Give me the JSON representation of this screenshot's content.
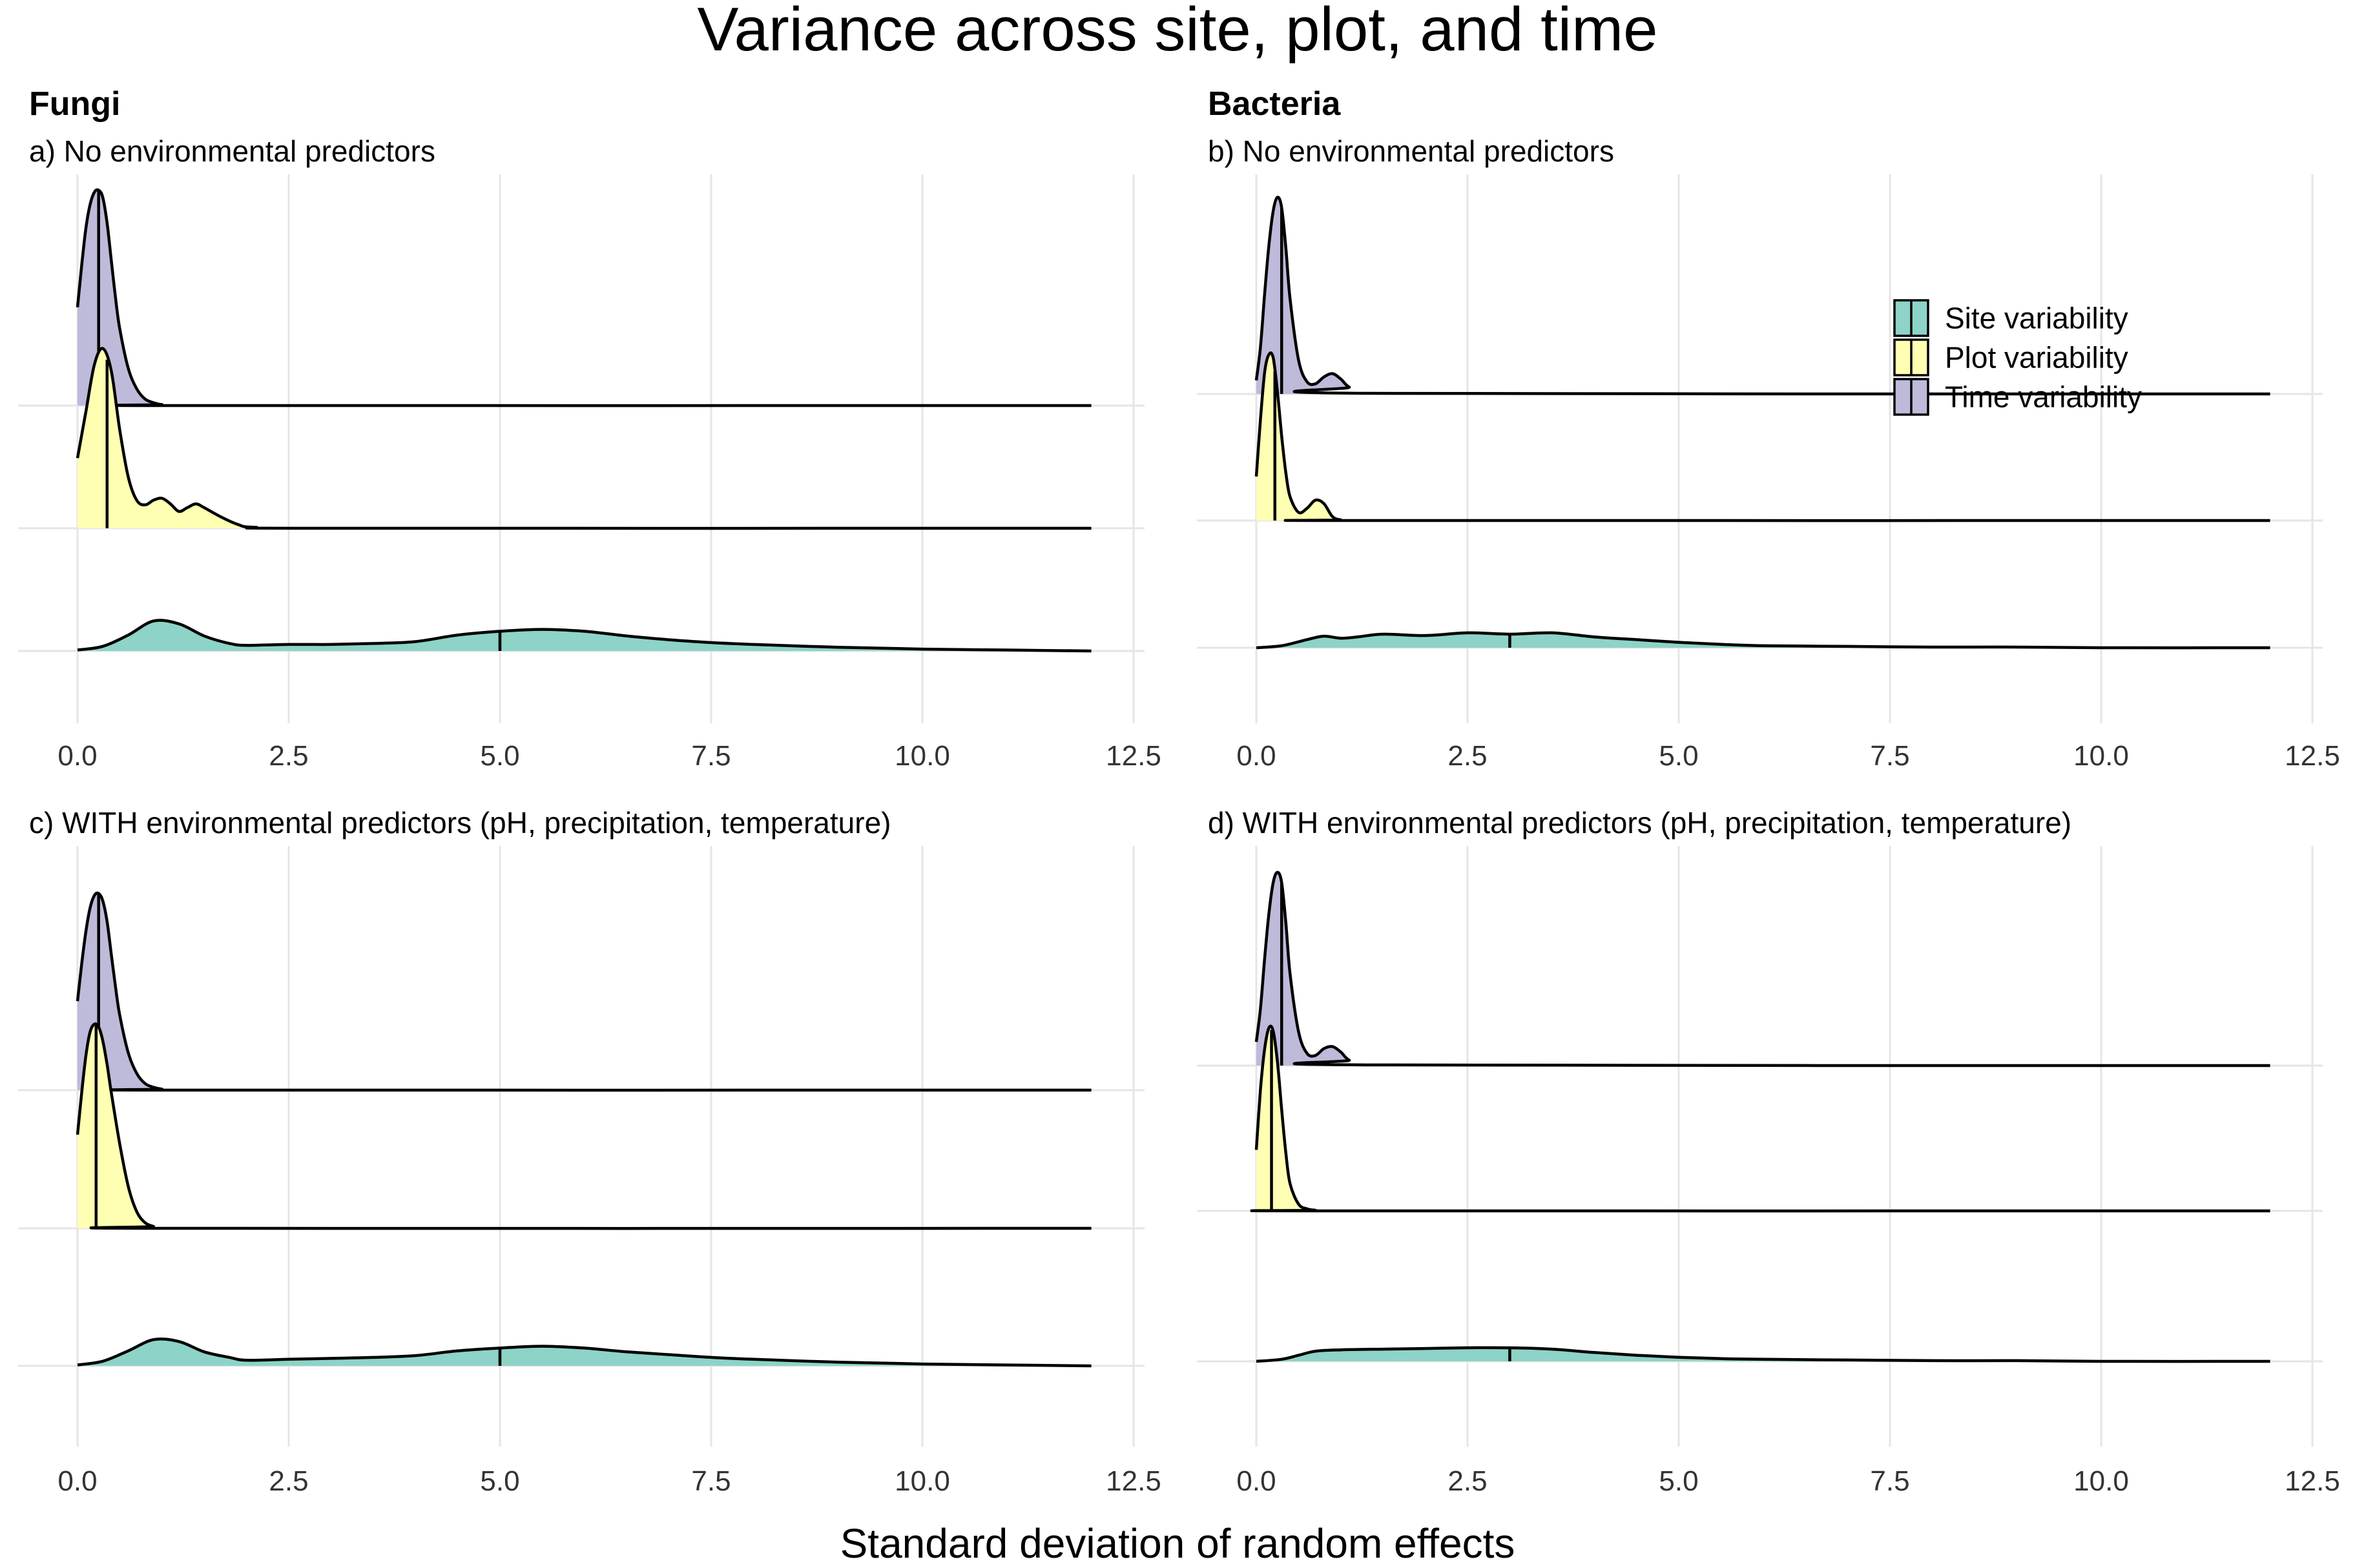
{
  "title": "Variance across site, plot, and time",
  "xlabel": "Standard deviation of random effects",
  "groups": [
    {
      "name": "Fungi"
    },
    {
      "name": "Bacteria"
    }
  ],
  "legend": {
    "placement": "inside-top-right of panel b",
    "items": [
      {
        "label": "Site variability",
        "color": "#8DD3C7"
      },
      {
        "label": "Plot variability",
        "color": "#FFFFB3"
      },
      {
        "label": "Time variability",
        "color": "#BEBADA"
      }
    ]
  },
  "chart_data": [
    {
      "type": "area",
      "subtype": "ridgeline-density",
      "group": "Fungi",
      "subtitle": "a) No environmental predictors",
      "x_ticks": [
        "0.0",
        "2.5",
        "5.0",
        "7.5",
        "10.0",
        "12.5"
      ],
      "xlim": [
        0,
        12.5
      ],
      "grid": true,
      "series": [
        {
          "name": "Site variability",
          "median": 5.0,
          "x": [
            0,
            0.3,
            0.6,
            0.9,
            1.2,
            1.5,
            1.8,
            2.0,
            2.5,
            3.0,
            3.5,
            4.0,
            4.5,
            5.0,
            5.5,
            6.0,
            6.5,
            7.0,
            7.5,
            8.0,
            9.0,
            10.0,
            11.0,
            12.0
          ],
          "y": [
            0.01,
            0.05,
            0.17,
            0.32,
            0.29,
            0.16,
            0.08,
            0.06,
            0.07,
            0.07,
            0.08,
            0.1,
            0.17,
            0.21,
            0.23,
            0.21,
            0.16,
            0.12,
            0.09,
            0.07,
            0.04,
            0.02,
            0.01,
            0.0
          ]
        },
        {
          "name": "Plot variability",
          "median": 0.35,
          "x": [
            0,
            0.1,
            0.2,
            0.3,
            0.4,
            0.5,
            0.6,
            0.7,
            0.8,
            0.9,
            1.0,
            1.1,
            1.2,
            1.3,
            1.4,
            1.5,
            1.7,
            1.9,
            2.1,
            3.0,
            12.0
          ],
          "y": [
            0.75,
            1.25,
            1.75,
            1.92,
            1.68,
            1.05,
            0.55,
            0.3,
            0.25,
            0.3,
            0.32,
            0.26,
            0.18,
            0.22,
            0.26,
            0.22,
            0.12,
            0.04,
            0.01,
            0.0,
            0.0
          ]
        },
        {
          "name": "Time variability",
          "median": 0.25,
          "x": [
            0,
            0.05,
            0.1,
            0.15,
            0.2,
            0.25,
            0.3,
            0.35,
            0.4,
            0.45,
            0.5,
            0.6,
            0.7,
            0.8,
            0.9,
            1.0,
            1.2,
            12.0
          ],
          "y": [
            1.05,
            1.5,
            1.9,
            2.15,
            2.28,
            2.3,
            2.22,
            1.95,
            1.55,
            1.15,
            0.82,
            0.4,
            0.18,
            0.07,
            0.03,
            0.01,
            0.0,
            0.0
          ]
        }
      ]
    },
    {
      "type": "area",
      "subtype": "ridgeline-density",
      "group": "Bacteria",
      "subtitle": "b) No environmental predictors",
      "x_ticks": [
        "0.0",
        "2.5",
        "5.0",
        "7.5",
        "10.0",
        "12.5"
      ],
      "xlim": [
        0,
        12.5
      ],
      "grid": true,
      "series": [
        {
          "name": "Site variability",
          "median": 3.0,
          "x": [
            0,
            0.3,
            0.6,
            0.8,
            1.0,
            1.2,
            1.5,
            2.0,
            2.5,
            3.0,
            3.5,
            4.0,
            4.5,
            5.0,
            5.5,
            6.0,
            7.0,
            8.0,
            9.0,
            10.0,
            12.0
          ],
          "y": [
            0.0,
            0.03,
            0.12,
            0.17,
            0.14,
            0.16,
            0.2,
            0.18,
            0.22,
            0.2,
            0.22,
            0.16,
            0.12,
            0.08,
            0.05,
            0.03,
            0.02,
            0.01,
            0.01,
            0.0,
            0.0
          ]
        },
        {
          "name": "Plot variability",
          "median": 0.22,
          "x": [
            0,
            0.05,
            0.1,
            0.15,
            0.2,
            0.25,
            0.3,
            0.35,
            0.4,
            0.5,
            0.6,
            0.7,
            0.8,
            0.9,
            1.0,
            1.2,
            12.0
          ],
          "y": [
            0.65,
            1.5,
            2.2,
            2.45,
            2.4,
            1.9,
            1.25,
            0.7,
            0.35,
            0.12,
            0.18,
            0.3,
            0.25,
            0.06,
            0.01,
            0.0,
            0.0
          ]
        },
        {
          "name": "Time variability",
          "median": 0.3,
          "x": [
            0,
            0.05,
            0.1,
            0.15,
            0.2,
            0.25,
            0.3,
            0.35,
            0.4,
            0.5,
            0.6,
            0.7,
            0.8,
            0.9,
            1.0,
            1.1,
            1.3,
            12.0
          ],
          "y": [
            0.2,
            0.7,
            1.5,
            2.2,
            2.7,
            2.9,
            2.75,
            2.15,
            1.4,
            0.5,
            0.18,
            0.15,
            0.25,
            0.3,
            0.22,
            0.1,
            0.01,
            0.0
          ]
        }
      ]
    },
    {
      "type": "area",
      "subtype": "ridgeline-density",
      "group": "Fungi",
      "subtitle": "c) WITH environmental predictors (pH, precipitation, temperature)",
      "x_ticks": [
        "0.0",
        "2.5",
        "5.0",
        "7.5",
        "10.0",
        "12.5"
      ],
      "xlim": [
        0,
        12.5
      ],
      "grid": true,
      "series": [
        {
          "name": "Site variability",
          "median": 5.0,
          "x": [
            0,
            0.3,
            0.6,
            0.9,
            1.2,
            1.5,
            1.8,
            2.0,
            2.5,
            3.0,
            3.5,
            4.0,
            4.5,
            5.0,
            5.5,
            6.0,
            6.5,
            7.0,
            7.5,
            8.0,
            9.0,
            10.0,
            11.0,
            12.0
          ],
          "y": [
            0.01,
            0.05,
            0.16,
            0.28,
            0.26,
            0.15,
            0.09,
            0.06,
            0.07,
            0.08,
            0.09,
            0.11,
            0.16,
            0.19,
            0.21,
            0.19,
            0.15,
            0.12,
            0.09,
            0.07,
            0.04,
            0.02,
            0.01,
            0.0
          ]
        },
        {
          "name": "Plot variability",
          "median": 0.22,
          "x": [
            0,
            0.05,
            0.1,
            0.15,
            0.2,
            0.25,
            0.3,
            0.35,
            0.4,
            0.5,
            0.6,
            0.7,
            0.8,
            0.9,
            1.0,
            12.0
          ],
          "y": [
            1.0,
            1.45,
            1.85,
            2.1,
            2.18,
            2.15,
            2.0,
            1.75,
            1.45,
            0.9,
            0.45,
            0.18,
            0.06,
            0.02,
            0.0,
            0.0
          ]
        },
        {
          "name": "Time variability",
          "median": 0.25,
          "x": [
            0,
            0.05,
            0.1,
            0.15,
            0.2,
            0.25,
            0.3,
            0.35,
            0.4,
            0.45,
            0.5,
            0.6,
            0.7,
            0.8,
            0.9,
            1.0,
            1.2,
            12.0
          ],
          "y": [
            0.95,
            1.35,
            1.7,
            1.95,
            2.08,
            2.1,
            2.02,
            1.8,
            1.45,
            1.1,
            0.8,
            0.4,
            0.18,
            0.07,
            0.03,
            0.01,
            0.0,
            0.0
          ]
        }
      ]
    },
    {
      "type": "area",
      "subtype": "ridgeline-density",
      "group": "Bacteria",
      "subtitle": "d) WITH environmental predictors (pH, precipitation, temperature)",
      "x_ticks": [
        "0.0",
        "2.5",
        "5.0",
        "7.5",
        "10.0",
        "12.5"
      ],
      "xlim": [
        0,
        12.5
      ],
      "grid": true,
      "series": [
        {
          "name": "Site variability",
          "median": 3.0,
          "x": [
            0,
            0.3,
            0.5,
            0.7,
            1.0,
            1.5,
            2.0,
            2.5,
            3.0,
            3.5,
            4.0,
            4.5,
            5.0,
            5.5,
            6.0,
            7.0,
            8.0,
            9.0,
            10.0,
            12.0
          ],
          "y": [
            0.0,
            0.03,
            0.09,
            0.15,
            0.17,
            0.18,
            0.19,
            0.2,
            0.2,
            0.18,
            0.13,
            0.09,
            0.06,
            0.04,
            0.03,
            0.02,
            0.01,
            0.01,
            0.0,
            0.0
          ]
        },
        {
          "name": "Plot variability",
          "median": 0.18,
          "x": [
            0,
            0.05,
            0.1,
            0.15,
            0.2,
            0.25,
            0.3,
            0.35,
            0.4,
            0.5,
            0.6,
            0.7,
            0.8,
            12.0
          ],
          "y": [
            0.9,
            1.8,
            2.4,
            2.7,
            2.65,
            2.2,
            1.5,
            0.85,
            0.4,
            0.1,
            0.03,
            0.01,
            0.0,
            0.0
          ]
        },
        {
          "name": "Time variability",
          "median": 0.3,
          "x": [
            0,
            0.05,
            0.1,
            0.15,
            0.2,
            0.25,
            0.3,
            0.35,
            0.4,
            0.5,
            0.6,
            0.7,
            0.8,
            0.9,
            1.0,
            1.1,
            1.3,
            12.0
          ],
          "y": [
            0.35,
            0.85,
            1.6,
            2.25,
            2.7,
            2.85,
            2.7,
            2.1,
            1.35,
            0.5,
            0.18,
            0.15,
            0.25,
            0.28,
            0.2,
            0.08,
            0.01,
            0.0
          ]
        }
      ]
    }
  ]
}
